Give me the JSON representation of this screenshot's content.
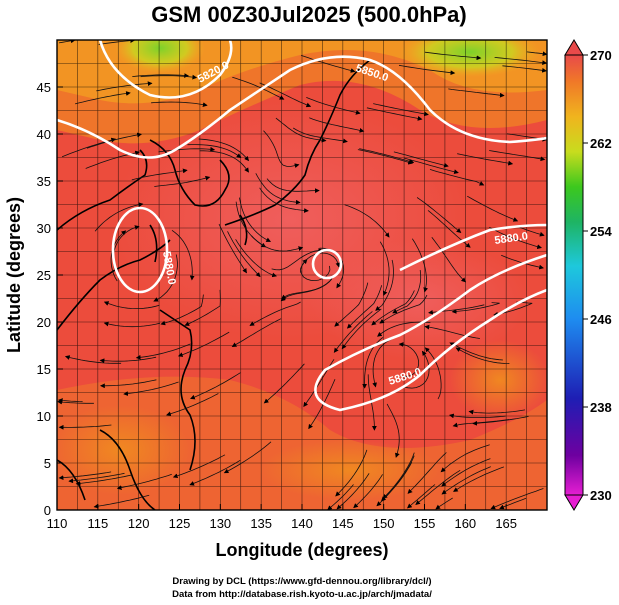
{
  "title": "GSM 00Z30Jul2025 (500.0hPa)",
  "chart_data": {
    "type": "heatmap",
    "variable_note": "temperature (K) shaded with wind streamlines and geopotential contours",
    "xlabel": "Longitude (degrees)",
    "ylabel": "Latitude  (degrees)",
    "xlim": [
      110,
      170
    ],
    "ylim": [
      0,
      50
    ],
    "x_ticks": [
      110,
      115,
      120,
      125,
      130,
      135,
      140,
      145,
      150,
      155,
      160,
      165
    ],
    "y_ticks": [
      0,
      5,
      10,
      15,
      20,
      25,
      30,
      35,
      40,
      45
    ],
    "colorbar": {
      "min": 230,
      "max": 270,
      "ticks": [
        270,
        262,
        254,
        246,
        238,
        230
      ]
    },
    "contours": [
      {
        "label": "5820.0",
        "value": 5820
      },
      {
        "label": "5850.0",
        "value": 5850
      },
      {
        "label": "5880.0",
        "value": 5880
      },
      {
        "label": "5880.0",
        "value": 5880
      },
      {
        "label": "5880.0",
        "value": 5880
      }
    ]
  },
  "credits": {
    "line1": "Drawing by DCL (https://www.gfd-dennou.org/library/dcl/)",
    "line2": "Data from http://database.rish.kyoto-u.ac.jp/arch/jmadata/"
  }
}
